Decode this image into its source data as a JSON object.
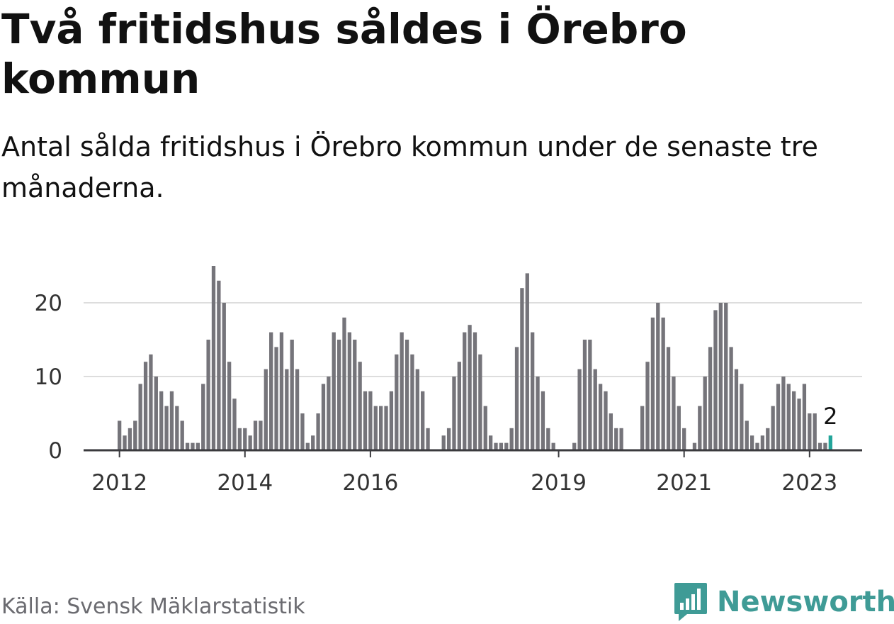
{
  "header": {
    "title": "Två fritidshus såldes i Örebro kommun",
    "subtitle": "Antal sålda fritidshus i Örebro kommun under de senaste tre månaderna."
  },
  "footer": {
    "source": "Källa: Svensk Mäklarstatistik",
    "brand": "Newsworthy",
    "brand_icon": "bar-chart-logo-icon"
  },
  "colors": {
    "bar": "#75747a",
    "highlight": "#23a59a",
    "grid": "#dddddd",
    "axis": "#3a3a3e",
    "brand": "#3f9b96",
    "text": "#111111"
  },
  "chart_data": {
    "type": "bar",
    "title": "",
    "xlabel": "",
    "ylabel": "",
    "x_start": "2012-01",
    "x_end": "2023-04",
    "ylim": [
      0,
      26
    ],
    "yticks": [
      0,
      10,
      20
    ],
    "xtick_labels": [
      "2012",
      "2014",
      "2016",
      "2019",
      "2021",
      "2023"
    ],
    "grid": true,
    "legend": "none",
    "highlight_label": "2",
    "series": [
      {
        "values": [
          4,
          2,
          3,
          4,
          9,
          12,
          13,
          10,
          8,
          6,
          8,
          6,
          4,
          1,
          1,
          1,
          9,
          15,
          25,
          23,
          20,
          12,
          7,
          3,
          3,
          2,
          4,
          4,
          11,
          16,
          14,
          16,
          11,
          15,
          11,
          5,
          1,
          2,
          5,
          9,
          10,
          16,
          15,
          18,
          16,
          15,
          12,
          8,
          8,
          6,
          6,
          6,
          8,
          13,
          16,
          15,
          13,
          11,
          8,
          3,
          0,
          0,
          2,
          3,
          10,
          12,
          16,
          17,
          16,
          13,
          6,
          2,
          1,
          1,
          1,
          3,
          14,
          22,
          24,
          16,
          10,
          8,
          3,
          1,
          0,
          0,
          0,
          1,
          11,
          15,
          15,
          11,
          9,
          8,
          5,
          3,
          3,
          0,
          0,
          0,
          6,
          12,
          18,
          20,
          18,
          14,
          10,
          6,
          3,
          0,
          1,
          6,
          10,
          14,
          19,
          20,
          20,
          14,
          11,
          9,
          4,
          2,
          1,
          2,
          3,
          6,
          9,
          10,
          9,
          8,
          7,
          9,
          5,
          5,
          1,
          1,
          2
        ]
      }
    ]
  }
}
